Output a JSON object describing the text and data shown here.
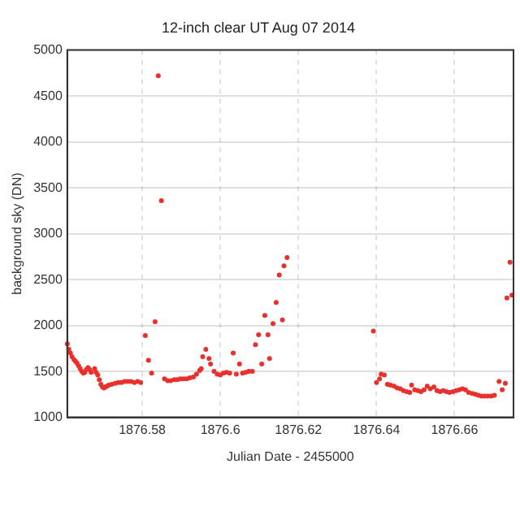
{
  "chart_data": {
    "type": "scatter",
    "title": "12-inch clear UT Aug 07 2014",
    "xlabel": "Julian Date - 2455000",
    "ylabel": "background sky (DN)",
    "xlim": [
      1876.5608,
      1876.6751
    ],
    "xticks": [
      1876.58,
      1876.6,
      1876.62,
      1876.64,
      1876.66
    ],
    "ylim": [
      1000,
      5000
    ],
    "yticks": [
      1000,
      1500,
      2000,
      2500,
      3000,
      3500,
      4000,
      4500,
      5000
    ],
    "grid": true,
    "legend": false,
    "marker": "circle",
    "series": [
      {
        "color": "#e8302c",
        "x": [
          1876.5608,
          1876.5612,
          1876.5616,
          1876.562,
          1876.5625,
          1876.5629,
          1876.5633,
          1876.5637,
          1876.5641,
          1876.5645,
          1876.5649,
          1876.5653,
          1876.5657,
          1876.5661,
          1876.5665,
          1876.5669,
          1876.5678,
          1876.5682,
          1876.5686,
          1876.569,
          1876.5694,
          1876.5698,
          1876.5702,
          1876.5706,
          1876.571,
          1876.5714,
          1876.5722,
          1876.5731,
          1876.5739,
          1876.5747,
          1876.5755,
          1876.5763,
          1876.5771,
          1876.578,
          1876.5788,
          1876.5796,
          1876.5808,
          1876.5816,
          1876.5824,
          1876.5833,
          1876.5841,
          1876.5849,
          1876.5857,
          1876.5865,
          1876.5873,
          1876.5882,
          1876.589,
          1876.5898,
          1876.5906,
          1876.5914,
          1876.5922,
          1876.5931,
          1876.5939,
          1876.5947,
          1876.5951,
          1876.5955,
          1876.5963,
          1876.5971,
          1876.5975,
          1876.5984,
          1876.5992,
          1876.6,
          1876.6008,
          1876.6016,
          1876.6024,
          1876.6033,
          1876.6041,
          1876.6049,
          1876.6057,
          1876.6065,
          1876.6073,
          1876.6082,
          1876.609,
          1876.6098,
          1876.6106,
          1876.6114,
          1876.6122,
          1876.6126,
          1876.6135,
          1876.6143,
          1876.6151,
          1876.6159,
          1876.6163,
          1876.6171,
          1876.6392,
          1876.64,
          1876.6408,
          1876.6412,
          1876.642,
          1876.6428,
          1876.6436,
          1876.6445,
          1876.6453,
          1876.6461,
          1876.6469,
          1876.6477,
          1876.6485,
          1876.649,
          1876.6498,
          1876.6506,
          1876.6514,
          1876.6522,
          1876.653,
          1876.6538,
          1876.6547,
          1876.6555,
          1876.6563,
          1876.6571,
          1876.6579,
          1876.6587,
          1876.6596,
          1876.6604,
          1876.6612,
          1876.662,
          1876.6628,
          1876.6636,
          1876.6645,
          1876.6653,
          1876.6661,
          1876.6669,
          1876.6677,
          1876.6685,
          1876.6694,
          1876.6702,
          1876.6714,
          1876.6722,
          1876.673,
          1876.6734,
          1876.6742,
          1876.6747
        ],
        "values": [
          1800,
          1740,
          1700,
          1660,
          1630,
          1610,
          1590,
          1560,
          1530,
          1500,
          1480,
          1490,
          1520,
          1540,
          1520,
          1490,
          1530,
          1490,
          1460,
          1410,
          1360,
          1330,
          1320,
          1330,
          1340,
          1350,
          1360,
          1370,
          1380,
          1380,
          1390,
          1390,
          1390,
          1380,
          1390,
          1380,
          1890,
          1620,
          1480,
          2040,
          4720,
          3360,
          1420,
          1400,
          1400,
          1410,
          1410,
          1420,
          1420,
          1420,
          1430,
          1440,
          1470,
          1510,
          1530,
          1660,
          1740,
          1640,
          1580,
          1500,
          1470,
          1460,
          1480,
          1490,
          1480,
          1700,
          1470,
          1580,
          1480,
          1490,
          1500,
          1500,
          1790,
          1900,
          1580,
          2110,
          1900,
          1640,
          2020,
          2250,
          2550,
          2060,
          2650,
          2740,
          1940,
          1380,
          1420,
          1470,
          1460,
          1360,
          1350,
          1340,
          1320,
          1310,
          1290,
          1280,
          1270,
          1350,
          1300,
          1290,
          1280,
          1300,
          1340,
          1310,
          1330,
          1290,
          1280,
          1290,
          1280,
          1270,
          1280,
          1290,
          1300,
          1310,
          1300,
          1270,
          1260,
          1250,
          1240,
          1230,
          1230,
          1230,
          1230,
          1240,
          1390,
          1300,
          1370,
          2300,
          2690,
          2330
        ]
      }
    ]
  }
}
